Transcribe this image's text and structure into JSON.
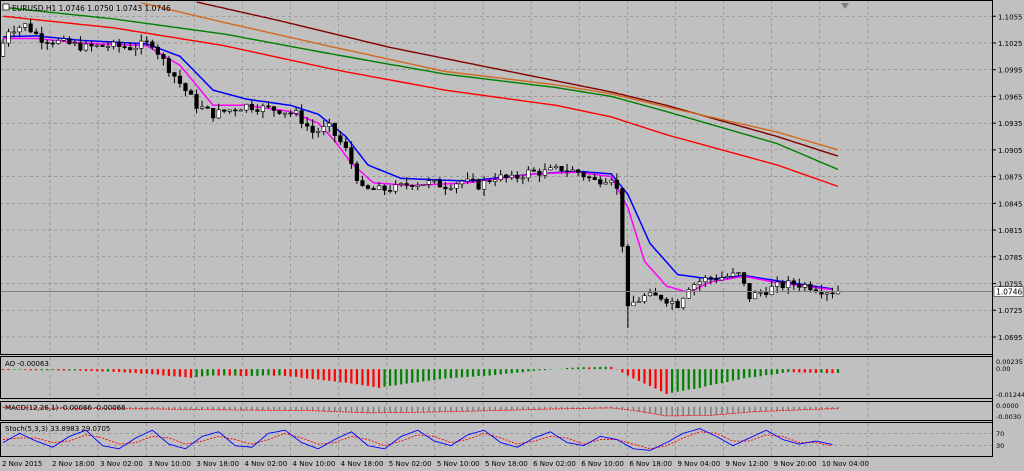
{
  "colors": {
    "background": "#c0c0c0",
    "grid": "#808080",
    "frame": "#000000",
    "bull": "#ffffff",
    "bear": "#000000",
    "ma_fast": "#ff00ff",
    "ma_mid": "#0000ff",
    "ma_red": "#ff0000",
    "ma_green": "#008000",
    "ma_orange": "#d2691e",
    "ma_maroon": "#800000",
    "ao_up": "#008000",
    "ao_down": "#ff0000",
    "macd_hist": "#c0c0c0",
    "macd_signal": "#ff0000",
    "stoch_main": "#0000ff",
    "stoch_signal": "#ff0000",
    "current_price_box": "#ffffff"
  },
  "chart_data": {
    "type": "candlestick",
    "title": "EURUSD,H1  1.0746 1.0750 1.0743 1.0746",
    "symbol": "EURUSD",
    "timeframe": "H1",
    "ohlc_header": "1.0746 1.0750 1.0743 1.0746",
    "current_price": 1.0746,
    "current_price_label": "1.0746",
    "ylim": [
      1.0677,
      1.1071
    ],
    "price_ticks": [
      "1.1055",
      "1.1025",
      "1.0995",
      "1.0965",
      "1.0935",
      "1.0905",
      "1.0875",
      "1.0845",
      "1.0815",
      "1.0785",
      "1.0755",
      "1.0725",
      "1.0695"
    ],
    "price_tick_values": [
      1.1055,
      1.1025,
      1.0995,
      1.0965,
      1.0935,
      1.0905,
      1.0875,
      1.0845,
      1.0815,
      1.0785,
      1.0755,
      1.0725,
      1.0695
    ],
    "time_labels": [
      "2 Nov 2015",
      "2 Nov 18:00",
      "3 Nov 02:00",
      "3 Nov 10:00",
      "3 Nov 18:00",
      "4 Nov 02:00",
      "4 Nov 10:00",
      "4 Nov 18:00",
      "5 Nov 02:00",
      "5 Nov 10:00",
      "5 Nov 18:00",
      "6 Nov 02:00",
      "6 Nov 10:00",
      "6 Nov 18:00",
      "9 Nov 04:00",
      "9 Nov 12:00",
      "9 Nov 20:00",
      "10 Nov 04:00"
    ],
    "price_path": [
      [
        0,
        1.101
      ],
      [
        2,
        1.104
      ],
      [
        5,
        1.1045
      ],
      [
        8,
        1.103
      ],
      [
        12,
        1.1025
      ],
      [
        16,
        1.102
      ],
      [
        20,
        1.1022
      ],
      [
        24,
        1.102
      ],
      [
        28,
        1.1025
      ],
      [
        30,
        1.1005
      ],
      [
        33,
        1.098
      ],
      [
        36,
        1.0955
      ],
      [
        39,
        1.0945
      ],
      [
        42,
        1.095
      ],
      [
        45,
        1.0955
      ],
      [
        48,
        1.0952
      ],
      [
        51,
        1.095
      ],
      [
        54,
        1.0945
      ],
      [
        57,
        1.0925
      ],
      [
        60,
        1.093
      ],
      [
        63,
        1.0905
      ],
      [
        66,
        1.086
      ],
      [
        69,
        1.086
      ],
      [
        72,
        1.0862
      ],
      [
        75,
        1.0868
      ],
      [
        78,
        1.0868
      ],
      [
        81,
        1.0865
      ],
      [
        84,
        1.087
      ],
      [
        87,
        1.0865
      ],
      [
        90,
        1.0875
      ],
      [
        93,
        1.0872
      ],
      [
        96,
        1.088
      ],
      [
        99,
        1.088
      ],
      [
        102,
        1.0884
      ],
      [
        105,
        1.088
      ],
      [
        108,
        1.087
      ],
      [
        111,
        1.0875
      ],
      [
        112,
        1.086
      ],
      [
        113,
        1.08
      ],
      [
        114,
        1.073
      ],
      [
        117,
        1.074
      ],
      [
        120,
        1.074
      ],
      [
        123,
        1.0732
      ],
      [
        125,
        1.0752
      ],
      [
        128,
        1.076
      ],
      [
        131,
        1.0762
      ],
      [
        134,
        1.0765
      ],
      [
        136,
        1.074
      ],
      [
        138,
        1.0745
      ],
      [
        141,
        1.0752
      ],
      [
        144,
        1.0755
      ],
      [
        147,
        1.0752
      ],
      [
        149,
        1.0748
      ],
      [
        151,
        1.0746
      ]
    ],
    "ma_fast_path": [
      [
        0,
        1.103
      ],
      [
        6,
        1.103
      ],
      [
        14,
        1.1025
      ],
      [
        26,
        1.1022
      ],
      [
        32,
        1.1
      ],
      [
        38,
        1.0955
      ],
      [
        44,
        1.0955
      ],
      [
        52,
        1.0948
      ],
      [
        57,
        1.0935
      ],
      [
        60,
        1.0915
      ],
      [
        63,
        1.089
      ],
      [
        67,
        1.0868
      ],
      [
        74,
        1.0865
      ],
      [
        84,
        1.0868
      ],
      [
        96,
        1.0878
      ],
      [
        104,
        1.088
      ],
      [
        110,
        1.0875
      ],
      [
        113,
        1.084
      ],
      [
        116,
        1.078
      ],
      [
        120,
        1.0752
      ],
      [
        124,
        1.0745
      ],
      [
        128,
        1.0757
      ],
      [
        134,
        1.0763
      ],
      [
        140,
        1.0756
      ],
      [
        150,
        1.0748
      ]
    ],
    "ma_mid_path": [
      [
        0,
        1.1032
      ],
      [
        6,
        1.1033
      ],
      [
        14,
        1.1028
      ],
      [
        26,
        1.1024
      ],
      [
        32,
        1.101
      ],
      [
        38,
        1.0972
      ],
      [
        44,
        1.0962
      ],
      [
        52,
        1.0955
      ],
      [
        57,
        1.0945
      ],
      [
        62,
        1.092
      ],
      [
        66,
        1.0888
      ],
      [
        72,
        1.0873
      ],
      [
        84,
        1.087
      ],
      [
        96,
        1.0878
      ],
      [
        104,
        1.0881
      ],
      [
        110,
        1.0878
      ],
      [
        113,
        1.0855
      ],
      [
        117,
        1.08
      ],
      [
        122,
        1.0765
      ],
      [
        128,
        1.076
      ],
      [
        134,
        1.0764
      ],
      [
        140,
        1.0758
      ],
      [
        150,
        1.0749
      ]
    ],
    "ma_red_path": [
      [
        0,
        1.1055
      ],
      [
        20,
        1.1042
      ],
      [
        40,
        1.1022
      ],
      [
        60,
        1.0995
      ],
      [
        80,
        1.0972
      ],
      [
        100,
        1.0955
      ],
      [
        110,
        1.0942
      ],
      [
        120,
        1.0922
      ],
      [
        140,
        1.0888
      ],
      [
        151,
        1.0864
      ]
    ],
    "ma_green_path": [
      [
        0,
        1.1065
      ],
      [
        20,
        1.1052
      ],
      [
        40,
        1.1035
      ],
      [
        60,
        1.1012
      ],
      [
        80,
        1.099
      ],
      [
        100,
        1.0975
      ],
      [
        110,
        1.0965
      ],
      [
        120,
        1.0948
      ],
      [
        140,
        1.0912
      ],
      [
        151,
        1.0883
      ]
    ],
    "ma_orange_path": [
      [
        25,
        1.107
      ],
      [
        40,
        1.1048
      ],
      [
        60,
        1.102
      ],
      [
        80,
        1.0993
      ],
      [
        100,
        1.0978
      ],
      [
        110,
        1.0968
      ],
      [
        120,
        1.0953
      ],
      [
        140,
        1.0925
      ],
      [
        151,
        1.0905
      ]
    ],
    "ma_maroon_path": [
      [
        35,
        1.1071
      ],
      [
        50,
        1.105
      ],
      [
        70,
        1.102
      ],
      [
        90,
        1.0995
      ],
      [
        110,
        1.097
      ],
      [
        120,
        1.0955
      ],
      [
        140,
        1.092
      ],
      [
        151,
        1.0898
      ]
    ],
    "ao": {
      "label": "AO -0.00063",
      "ylim": [
        -0.0045,
        0.0018
      ],
      "ticks": [
        "0.00235",
        "0.00"
      ],
      "path": [
        [
          0,
          -0.0001
        ],
        [
          12,
          -0.0002
        ],
        [
          20,
          -0.0004
        ],
        [
          28,
          -0.0009
        ],
        [
          34,
          -0.0014
        ],
        [
          38,
          -0.001
        ],
        [
          44,
          -0.0011
        ],
        [
          50,
          -0.001
        ],
        [
          56,
          -0.0016
        ],
        [
          62,
          -0.0022
        ],
        [
          68,
          -0.003
        ],
        [
          74,
          -0.0022
        ],
        [
          80,
          -0.0015
        ],
        [
          88,
          -0.001
        ],
        [
          96,
          -0.0003
        ],
        [
          104,
          0.0003
        ],
        [
          110,
          0.0004
        ],
        [
          114,
          -0.0015
        ],
        [
          120,
          -0.004
        ],
        [
          126,
          -0.003
        ],
        [
          134,
          -0.0015
        ],
        [
          142,
          -0.0005
        ],
        [
          150,
          -0.00063
        ]
      ]
    },
    "macd": {
      "label": "MACD(12,26,1) -0.00066 -0.00066",
      "ylim": [
        -0.004,
        0.0012
      ],
      "ticks": [
        "0.0000",
        "-0.0030"
      ],
      "path": [
        [
          0,
          -0.0003
        ],
        [
          14,
          -0.0006
        ],
        [
          26,
          -0.0007
        ],
        [
          34,
          -0.0009
        ],
        [
          44,
          -0.0011
        ],
        [
          56,
          -0.0013
        ],
        [
          66,
          -0.002
        ],
        [
          76,
          -0.0018
        ],
        [
          88,
          -0.0013
        ],
        [
          100,
          -0.0007
        ],
        [
          110,
          -0.0004
        ],
        [
          114,
          -0.0012
        ],
        [
          120,
          -0.003
        ],
        [
          128,
          -0.0028
        ],
        [
          136,
          -0.0016
        ],
        [
          146,
          -0.0009
        ],
        [
          150,
          -0.00066
        ]
      ]
    },
    "macd_extra_tick": "-0.01244",
    "stoch": {
      "label": "Stoch(5,3,3) 33.8983 29.0705",
      "ylim": [
        0,
        100
      ],
      "ticks": [
        "70",
        "30"
      ],
      "levels": [
        70,
        30
      ],
      "main_path": [
        [
          0,
          40
        ],
        [
          3,
          70
        ],
        [
          6,
          45
        ],
        [
          9,
          25
        ],
        [
          12,
          60
        ],
        [
          15,
          80
        ],
        [
          18,
          30
        ],
        [
          21,
          20
        ],
        [
          24,
          55
        ],
        [
          27,
          80
        ],
        [
          30,
          35
        ],
        [
          33,
          20
        ],
        [
          36,
          60
        ],
        [
          39,
          75
        ],
        [
          42,
          30
        ],
        [
          45,
          25
        ],
        [
          48,
          70
        ],
        [
          51,
          80
        ],
        [
          54,
          40
        ],
        [
          57,
          20
        ],
        [
          60,
          50
        ],
        [
          63,
          75
        ],
        [
          66,
          30
        ],
        [
          69,
          20
        ],
        [
          72,
          60
        ],
        [
          75,
          80
        ],
        [
          78,
          45
        ],
        [
          81,
          30
        ],
        [
          84,
          65
        ],
        [
          87,
          80
        ],
        [
          90,
          40
        ],
        [
          93,
          25
        ],
        [
          96,
          55
        ],
        [
          99,
          75
        ],
        [
          102,
          40
        ],
        [
          105,
          30
        ],
        [
          108,
          60
        ],
        [
          111,
          50
        ],
        [
          114,
          20
        ],
        [
          117,
          15
        ],
        [
          120,
          40
        ],
        [
          123,
          70
        ],
        [
          126,
          85
        ],
        [
          129,
          60
        ],
        [
          132,
          30
        ],
        [
          135,
          55
        ],
        [
          138,
          80
        ],
        [
          141,
          50
        ],
        [
          144,
          35
        ],
        [
          147,
          45
        ],
        [
          150,
          33.9
        ]
      ],
      "signal_path": [
        [
          0,
          50
        ],
        [
          3,
          55
        ],
        [
          6,
          55
        ],
        [
          9,
          40
        ],
        [
          12,
          45
        ],
        [
          15,
          65
        ],
        [
          18,
          55
        ],
        [
          21,
          35
        ],
        [
          24,
          40
        ],
        [
          27,
          60
        ],
        [
          30,
          55
        ],
        [
          33,
          35
        ],
        [
          36,
          45
        ],
        [
          39,
          60
        ],
        [
          42,
          50
        ],
        [
          45,
          35
        ],
        [
          48,
          50
        ],
        [
          51,
          70
        ],
        [
          54,
          55
        ],
        [
          57,
          35
        ],
        [
          60,
          40
        ],
        [
          63,
          60
        ],
        [
          66,
          50
        ],
        [
          69,
          30
        ],
        [
          72,
          45
        ],
        [
          75,
          65
        ],
        [
          78,
          60
        ],
        [
          81,
          40
        ],
        [
          84,
          50
        ],
        [
          87,
          70
        ],
        [
          90,
          55
        ],
        [
          93,
          35
        ],
        [
          96,
          45
        ],
        [
          99,
          60
        ],
        [
          102,
          55
        ],
        [
          105,
          35
        ],
        [
          108,
          50
        ],
        [
          111,
          50
        ],
        [
          114,
          35
        ],
        [
          117,
          20
        ],
        [
          120,
          30
        ],
        [
          123,
          55
        ],
        [
          126,
          75
        ],
        [
          129,
          70
        ],
        [
          132,
          45
        ],
        [
          135,
          45
        ],
        [
          138,
          65
        ],
        [
          141,
          60
        ],
        [
          144,
          40
        ],
        [
          147,
          40
        ],
        [
          150,
          29.1
        ]
      ]
    }
  }
}
